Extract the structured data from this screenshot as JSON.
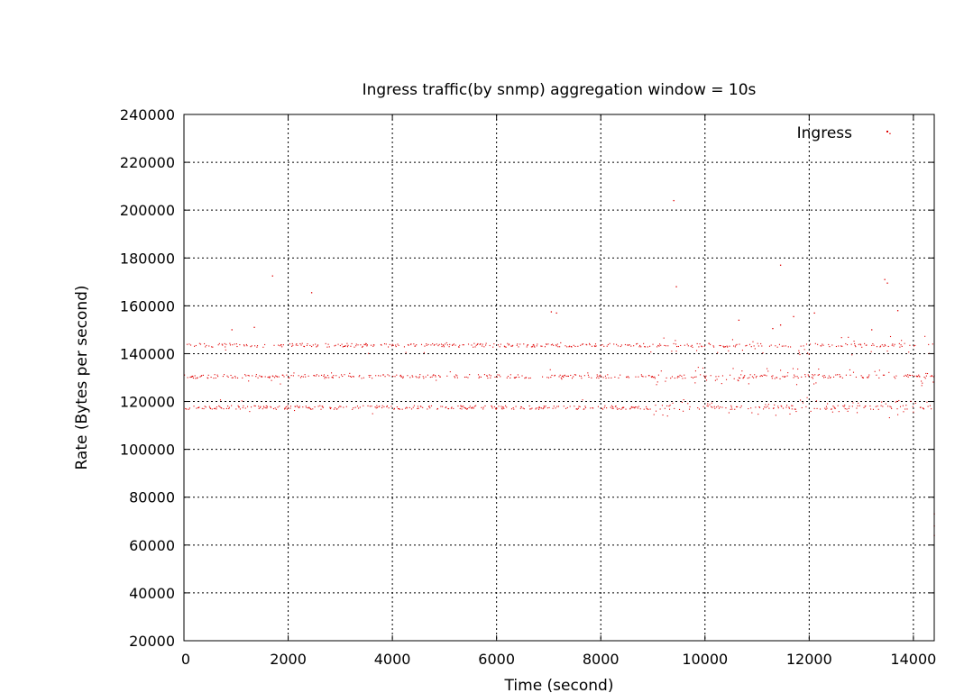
{
  "chart_data": {
    "type": "scatter",
    "title": "Ingress traffic(by snmp) aggregation window = 10s",
    "xlabel": "Time (second)",
    "ylabel": "Rate (Bytes per second)",
    "xlim": [
      0,
      14400
    ],
    "ylim": [
      20000,
      240000
    ],
    "x_ticks": [
      0,
      2000,
      4000,
      6000,
      8000,
      10000,
      12000,
      14000
    ],
    "y_ticks": [
      20000,
      40000,
      60000,
      80000,
      100000,
      120000,
      140000,
      160000,
      180000,
      200000,
      220000,
      240000
    ],
    "x_tick_labels": [
      "0",
      "2000",
      "4000",
      "6000",
      "8000",
      "10000",
      "12000",
      "14000"
    ],
    "y_tick_labels": [
      "20000",
      "40000",
      "60000",
      "80000",
      "100000",
      "120000",
      "140000",
      "160000",
      "180000",
      "200000",
      "220000",
      "240000"
    ],
    "grid": true,
    "legend_position": "top-right",
    "series": [
      {
        "name": "Ingress",
        "color": "#e00000",
        "sampling_interval": 10,
        "bands": [
          117500,
          130500,
          143500
        ],
        "points": [
          [
            1700,
            172500
          ],
          [
            2450,
            165500
          ],
          [
            9400,
            204000
          ],
          [
            9450,
            168000
          ],
          [
            11450,
            177000
          ],
          [
            13450,
            171000
          ],
          [
            13500,
            169500
          ],
          [
            1350,
            151000
          ],
          [
            920,
            150000
          ],
          [
            7150,
            157000
          ],
          [
            7050,
            157500
          ],
          [
            10650,
            154000
          ],
          [
            11700,
            155500
          ],
          [
            12100,
            157000
          ],
          [
            13200,
            150000
          ],
          [
            13700,
            158000
          ],
          [
            11300,
            150500
          ],
          [
            11450,
            152000
          ],
          [
            14400,
            73000
          ],
          [
            14400,
            64000
          ],
          [
            14400,
            68000
          ],
          [
            13550,
            232000
          ]
        ]
      }
    ]
  }
}
